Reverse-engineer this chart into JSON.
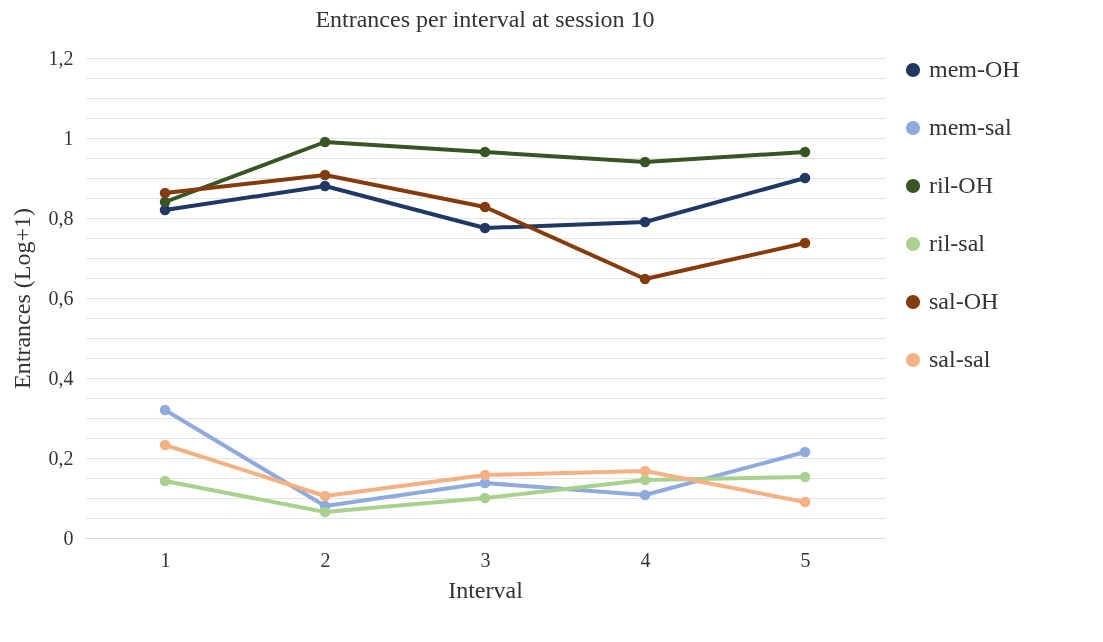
{
  "chart_data": {
    "type": "line",
    "title": "Entrances per interval at session 10",
    "xlabel": "Interval",
    "ylabel": "Entrances (Log+1)",
    "categories": [
      "1",
      "2",
      "3",
      "4",
      "5"
    ],
    "series": [
      {
        "name": "mem-OH",
        "color": "#203864",
        "values": [
          0.82,
          0.88,
          0.775,
          0.79,
          0.9
        ]
      },
      {
        "name": "mem-sal",
        "color": "#8faadc",
        "values": [
          0.32,
          0.08,
          0.1375,
          0.1075,
          0.215
        ]
      },
      {
        "name": "ril-OH",
        "color": "#375623",
        "values": [
          0.84,
          0.99,
          0.965,
          0.94,
          0.965
        ]
      },
      {
        "name": "ril-sal",
        "color": "#a9d18e",
        "values": [
          0.1425,
          0.065,
          0.1,
          0.145,
          0.1525
        ]
      },
      {
        "name": "sal-OH",
        "color": "#843c0c",
        "values": [
          0.8625,
          0.9075,
          0.8275,
          0.6475,
          0.7375
        ]
      },
      {
        "name": "sal-sal",
        "color": "#f4b183",
        "values": [
          0.2325,
          0.105,
          0.1575,
          0.1675,
          0.09
        ]
      }
    ],
    "ylim": [
      0,
      1.2
    ],
    "yticks": [
      {
        "value": 0,
        "label": "0"
      },
      {
        "value": 0.05,
        "label": null
      },
      {
        "value": 0.1,
        "label": null
      },
      {
        "value": 0.15,
        "label": null
      },
      {
        "value": 0.2,
        "label": "0,2"
      },
      {
        "value": 0.25,
        "label": null
      },
      {
        "value": 0.3,
        "label": null
      },
      {
        "value": 0.35,
        "label": null
      },
      {
        "value": 0.4,
        "label": "0,4"
      },
      {
        "value": 0.45,
        "label": null
      },
      {
        "value": 0.5,
        "label": null
      },
      {
        "value": 0.55,
        "label": null
      },
      {
        "value": 0.6,
        "label": "0,6"
      },
      {
        "value": 0.65,
        "label": null
      },
      {
        "value": 0.7,
        "label": null
      },
      {
        "value": 0.75,
        "label": null
      },
      {
        "value": 0.8,
        "label": "0,8"
      },
      {
        "value": 0.85,
        "label": null
      },
      {
        "value": 0.9,
        "label": null
      },
      {
        "value": 0.95,
        "label": null
      },
      {
        "value": 1,
        "label": "1"
      },
      {
        "value": 1.05,
        "label": null
      },
      {
        "value": 1.1,
        "label": null
      },
      {
        "value": 1.15,
        "label": null
      },
      {
        "value": 1.2,
        "label": "1,2"
      }
    ],
    "grid": "y",
    "legend": "right",
    "marker": "circle",
    "line_style": "solid"
  }
}
